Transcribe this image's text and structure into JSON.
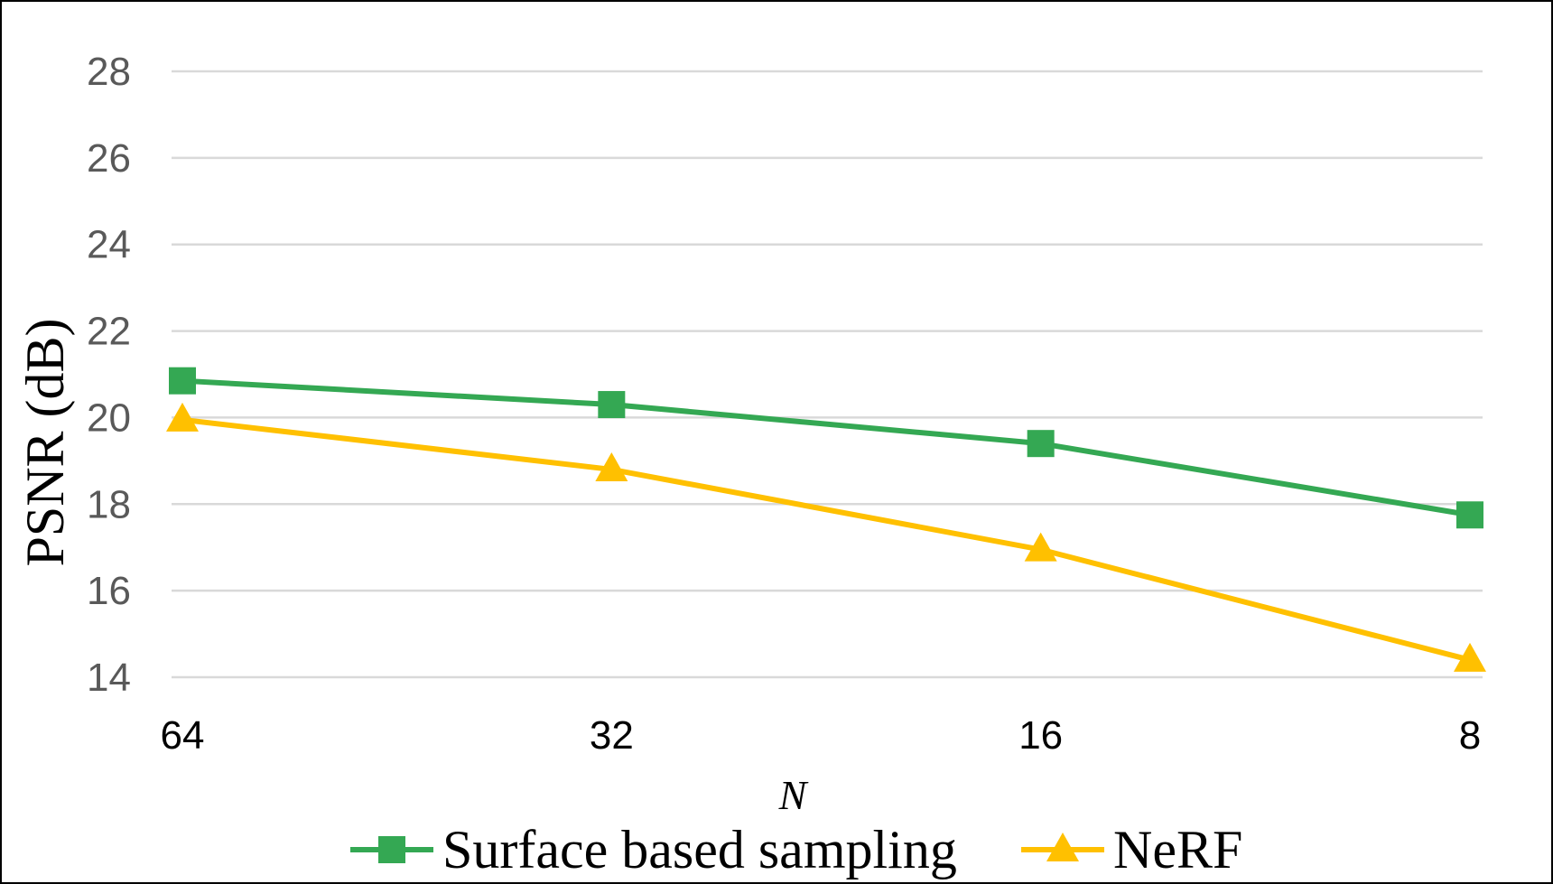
{
  "chart_data": {
    "type": "line",
    "xlabel": "N",
    "ylabel": "PSNR (dB)",
    "categories": [
      "64",
      "32",
      "16",
      "8"
    ],
    "x": [
      64,
      32,
      16,
      8
    ],
    "x_scale": "log2, reversed",
    "ylim": [
      14,
      28
    ],
    "yticks": [
      "14",
      "16",
      "18",
      "20",
      "22",
      "24",
      "26",
      "28"
    ],
    "grid": true,
    "legend_position": "bottom",
    "series": [
      {
        "name": "Surface based sampling",
        "values": [
          20.85,
          20.3,
          19.4,
          17.75
        ],
        "color": "#34A853",
        "marker": "square"
      },
      {
        "name": "NeRF",
        "values": [
          19.95,
          18.8,
          16.95,
          14.4
        ],
        "color": "#FFC000",
        "marker": "triangle"
      }
    ]
  }
}
